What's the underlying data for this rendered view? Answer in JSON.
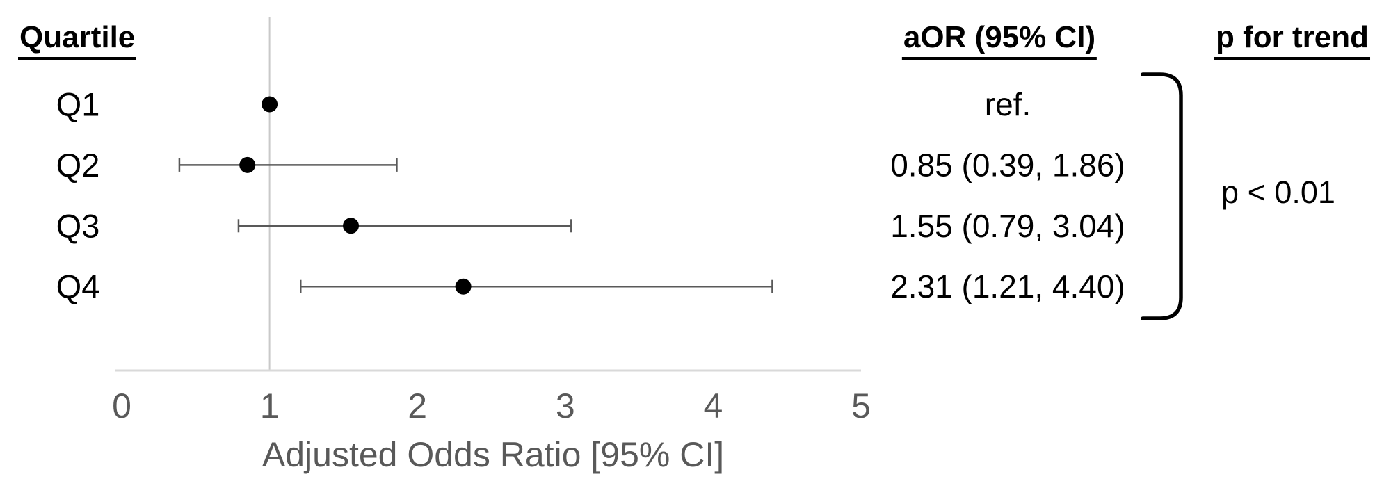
{
  "columns": {
    "quartile": "Quartile",
    "aor": "aOR (95% CI)",
    "p_trend": "p for trend"
  },
  "p_trend_result": "p < 0.01",
  "chart_data": {
    "type": "scatter",
    "subtype": "forest-plot",
    "title": "",
    "xlabel": "Adjusted Odds Ratio [95% CI]",
    "ylabel": "",
    "xlim": [
      0,
      5
    ],
    "xticks": [
      0,
      1,
      2,
      3,
      4,
      5
    ],
    "reference_line_x": 1,
    "grid": false,
    "categories": [
      "Q1",
      "Q2",
      "Q3",
      "Q4"
    ],
    "series": [
      {
        "name": "aOR",
        "values": [
          1.0,
          0.85,
          1.55,
          2.31
        ]
      }
    ],
    "rows": [
      {
        "label": "Q1",
        "aor": 1.0,
        "ci_low": null,
        "ci_high": null,
        "aor_text": "ref."
      },
      {
        "label": "Q2",
        "aor": 0.85,
        "ci_low": 0.39,
        "ci_high": 1.86,
        "aor_text": "0.85 (0.39, 1.86)"
      },
      {
        "label": "Q3",
        "aor": 1.55,
        "ci_low": 0.79,
        "ci_high": 3.04,
        "aor_text": "1.55 (0.79, 3.04)"
      },
      {
        "label": "Q4",
        "aor": 2.31,
        "ci_low": 1.21,
        "ci_high": 4.4,
        "aor_text": "2.31 (1.21, 4.40)"
      }
    ],
    "colors": {
      "marker": "#000000",
      "ci_line": "#595959",
      "axis_line": "#d9d9d9",
      "reference_line": "#c9c9c9",
      "axis_text": "#595959",
      "row_text": "#000000",
      "bracket": "#000000"
    }
  }
}
